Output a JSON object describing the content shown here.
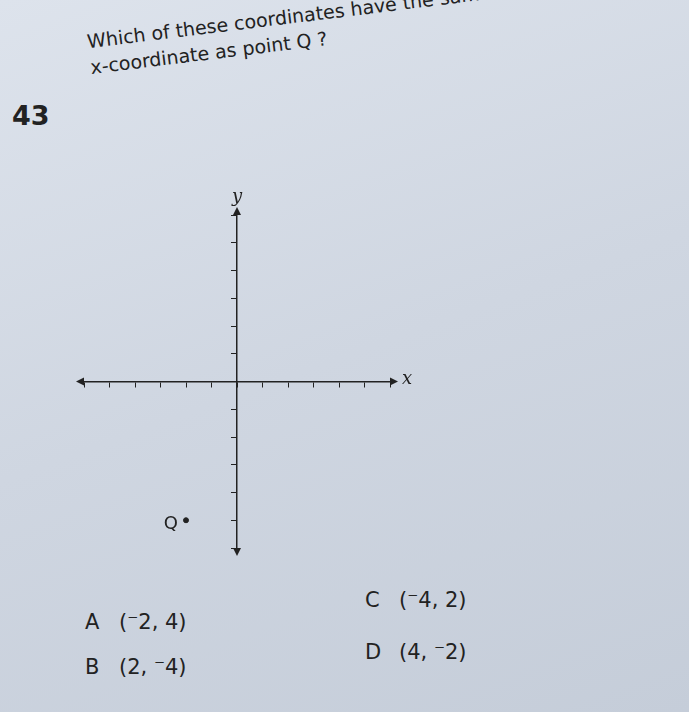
{
  "question": {
    "number": "43",
    "text": [
      "Which of these coordinates have the same",
      "x-coordinate as point Q ?"
    ]
  },
  "chart_data": {
    "type": "scatter",
    "x_label": "x",
    "y_label": "y",
    "points": [
      {
        "label": "Q",
        "x": -2,
        "y": -5
      }
    ],
    "xlim": [
      -6,
      6
    ],
    "ylim": [
      -6,
      6
    ],
    "xticks": [
      -6,
      -5,
      -4,
      -3,
      -2,
      -1,
      0,
      1,
      2,
      3,
      4,
      5,
      6
    ],
    "yticks": [
      -6,
      -5,
      -4,
      -3,
      -2,
      -1,
      0,
      1,
      2,
      3,
      4,
      5,
      6
    ],
    "tick_labels": false,
    "grid": false,
    "color": "#222222"
  },
  "options": [
    {
      "letter": "A",
      "text": "(⁻2, 4)"
    },
    {
      "letter": "B",
      "text": "(2, ⁻4)"
    },
    {
      "letter": "C",
      "text": "(⁻4, 2)"
    },
    {
      "letter": "D",
      "text": "(4, ⁻2)"
    }
  ]
}
